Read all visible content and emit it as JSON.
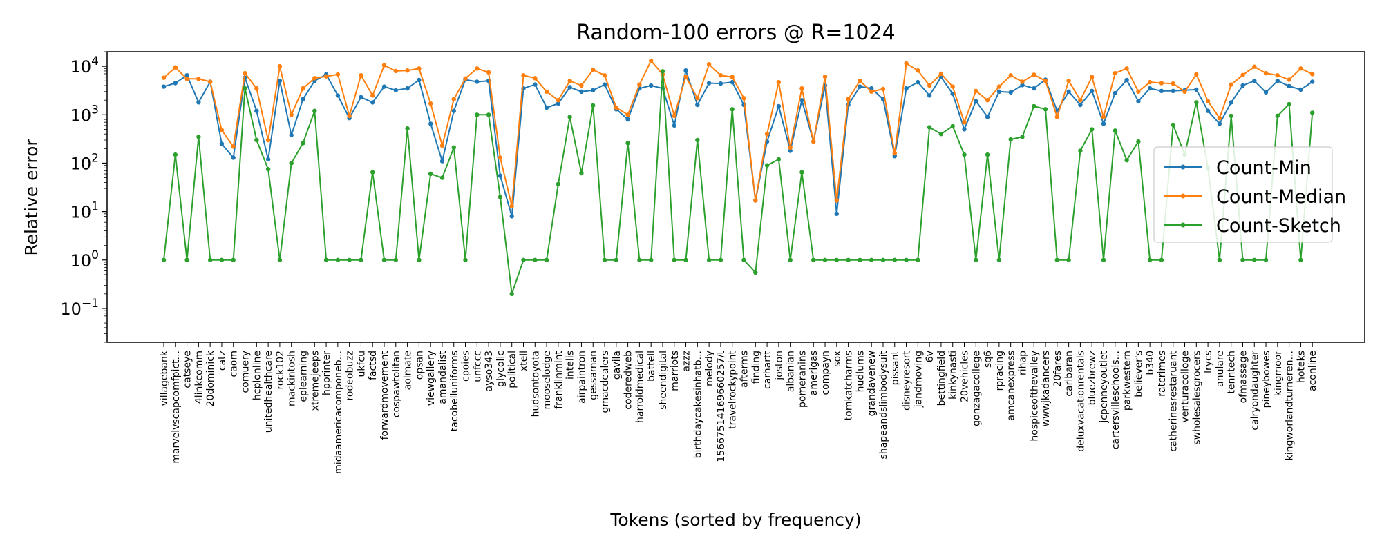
{
  "chart_data": {
    "type": "line",
    "title": "Random-100 errors @ R=1024",
    "xlabel": "Tokens (sorted by frequency)",
    "ylabel": "Relative error",
    "yscale": "log",
    "ylim": [
      0.02,
      20000
    ],
    "y_ticks": [
      {
        "value": 0.1,
        "base": "10",
        "exp": "−1"
      },
      {
        "value": 1,
        "base": "10",
        "exp": "0"
      },
      {
        "value": 10,
        "base": "10",
        "exp": "1"
      },
      {
        "value": 100,
        "base": "10",
        "exp": "2"
      },
      {
        "value": 1000,
        "base": "10",
        "exp": "3"
      },
      {
        "value": 10000,
        "base": "10",
        "exp": "4"
      }
    ],
    "grid": false,
    "legend_position": "right",
    "categories": [
      "villagebank",
      "marvelvscapcomfpict...",
      "catseye",
      "4linkcomm",
      "20dominick",
      "catz",
      "caom",
      "comuery",
      "hcplonline",
      "unitedhealthcare",
      "rock102",
      "mackintosh",
      "eplearning",
      "xtremejeeps",
      "hpprinter",
      "midaamericacomponeb...",
      "rodeobuzz",
      "ukfcu",
      "factsd",
      "forwardmovement",
      "cospawtolitan",
      "aolmate",
      "opsan",
      "viewgallery",
      "amandalist",
      "tacobelluniforms",
      "cpoies",
      "unfccc",
      "ayso343",
      "glycolic",
      "political",
      "xtell",
      "hudsontoyota",
      "mooselodge",
      "franklinmint",
      "intelis",
      "airpaintron",
      "gessaman",
      "gmacdealers",
      "gavila",
      "coderedweb",
      "harroldmedical",
      "battell",
      "sheendigital",
      "marriots",
      "azzz",
      "birthdaycakesinhatb...",
      "melody",
      "15667514169660257/t",
      "travelrockypoint",
      "afterms",
      "finding",
      "carhartt",
      "joston",
      "albanian",
      "pomeranins",
      "amerigas",
      "compayn",
      "sox",
      "tomkatcharms",
      "hudlums",
      "grandavenew",
      "shapeandslimbodysuit",
      "pissant",
      "disneyresort",
      "jandmoving",
      "6v",
      "bettingfield",
      "kinkynasti",
      "20vehicles",
      "gonzagacollege",
      "sq6",
      "rpracing",
      "amcanexpress",
      "rihap",
      "hospiceofthevalley",
      "wwwjkadancers",
      "20fares",
      "caribaran",
      "deluxvacationrentals",
      "bluezbrewz",
      "jcpenneyoutlet",
      "cartersvilleschools...",
      "parkwestern",
      "believer's",
      "b340",
      "ratcrimes",
      "catherinesrestaruant",
      "venturacolloge",
      "swholesalesgrocers",
      "lrycs",
      "anulare",
      "tenntech",
      "ofmassage",
      "calryondaughter",
      "pineybowes",
      "kingmoor",
      "kingworlandturneren...",
      "hoteks",
      "aconline"
    ],
    "series": [
      {
        "name": "Count-Min",
        "color": "#1f77b4",
        "values": [
          3800,
          4500,
          6500,
          1800,
          4800,
          250,
          130,
          5800,
          1200,
          120,
          5000,
          380,
          2100,
          5000,
          6800,
          2500,
          850,
          2300,
          1800,
          3800,
          3200,
          3500,
          5200,
          650,
          110,
          1200,
          5300,
          4800,
          5000,
          55,
          8,
          3500,
          4200,
          1400,
          1700,
          3700,
          3000,
          3200,
          4200,
          1300,
          800,
          3500,
          4000,
          3500,
          600,
          8200,
          1600,
          4500,
          4400,
          4700,
          1600,
          17,
          280,
          1500,
          180,
          2000,
          280,
          4000,
          9,
          1600,
          3800,
          3500,
          2100,
          140,
          3500,
          4700,
          2500,
          6000,
          2700,
          500,
          1900,
          900,
          3000,
          2900,
          4100,
          3500,
          5300,
          1200,
          3000,
          1600,
          3100,
          650,
          2800,
          5200,
          1900,
          3500,
          3100,
          3100,
          3200,
          3300,
          1200,
          650,
          1800,
          4000,
          5000,
          2900,
          5000,
          3900,
          3300,
          4800
        ]
      },
      {
        "name": "Count-Median",
        "color": "#ff7f0e",
        "values": [
          5800,
          9500,
          5500,
          5500,
          4800,
          480,
          220,
          7200,
          3500,
          300,
          10000,
          1000,
          3500,
          5700,
          6200,
          6800,
          950,
          6500,
          2500,
          10500,
          8000,
          8200,
          9000,
          1700,
          230,
          2100,
          5600,
          9000,
          7500,
          130,
          13,
          6500,
          5700,
          3000,
          2000,
          5000,
          4000,
          8500,
          6500,
          1400,
          1000,
          4200,
          13000,
          6800,
          950,
          6100,
          2200,
          11000,
          6500,
          6000,
          2200,
          17,
          400,
          4700,
          210,
          3500,
          280,
          6100,
          17,
          2100,
          5000,
          3000,
          3400,
          160,
          11500,
          8200,
          4000,
          7000,
          3800,
          700,
          3100,
          2000,
          3800,
          6500,
          4800,
          6700,
          5000,
          900,
          5000,
          2000,
          6000,
          900,
          7200,
          9000,
          3000,
          4700,
          4500,
          4400,
          3000,
          6800,
          1900,
          850,
          4200,
          6600,
          9800,
          7200,
          6500,
          5300,
          9000,
          6900
        ]
      },
      {
        "name": "Count-Sketch",
        "color": "#2ca02c",
        "values": [
          1,
          150,
          1,
          350,
          1,
          1,
          1,
          3500,
          300,
          75,
          1,
          100,
          260,
          1200,
          1,
          1,
          1,
          1,
          65,
          1,
          1,
          520,
          1,
          60,
          50,
          210,
          1,
          1000,
          1000,
          20,
          0.2,
          1,
          1,
          1,
          37,
          900,
          62,
          1550,
          1,
          1,
          260,
          1,
          1,
          7900,
          1,
          1,
          300,
          1,
          1,
          1300,
          1,
          0.55,
          90,
          120,
          1,
          65,
          1,
          1,
          1,
          1,
          1,
          1,
          1,
          1,
          1,
          1,
          550,
          400,
          580,
          150,
          1,
          150,
          1,
          310,
          350,
          1500,
          1300,
          1,
          1,
          180,
          500,
          1,
          470,
          115,
          280,
          1,
          1,
          620,
          150,
          1800,
          80,
          1,
          950,
          1,
          1,
          1,
          950,
          1650,
          1,
          1100
        ]
      }
    ]
  }
}
